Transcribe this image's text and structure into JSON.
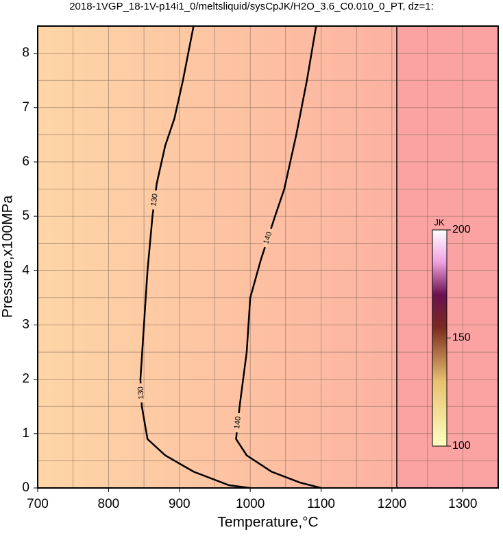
{
  "chart_data": {
    "type": "contour",
    "title": "2018-1VGP_18-1V-p14i1_0/meltsliquid/sysCpJK/H2O_3.6_C0.010_0_PT, dz=1:",
    "x_label": "Temperature,°C",
    "y_label": "Pressure,x100MPa",
    "xlim": [
      700,
      1350
    ],
    "ylim": [
      0,
      8.5
    ],
    "xticks": [
      700,
      800,
      900,
      1000,
      1100,
      1200,
      1300
    ],
    "yticks": [
      0,
      1,
      2,
      3,
      4,
      5,
      6,
      7,
      8
    ],
    "xgrid": [
      750,
      800,
      850,
      900,
      950,
      1000,
      1050,
      1100,
      1150,
      1200,
      1250,
      1300
    ],
    "ygrid": [
      0.5,
      1,
      1.5,
      2,
      2.5,
      3,
      3.5,
      4,
      4.5,
      5,
      5.5,
      6,
      6.5,
      7,
      7.5,
      8
    ],
    "contours": [
      {
        "level": 130,
        "x": [
          920,
          905,
          893,
          880,
          868,
          862,
          855,
          850,
          845,
          847,
          855,
          880,
          920,
          970,
          1000
        ],
        "y": [
          8.5,
          7.5,
          6.8,
          6.3,
          5.6,
          5,
          4,
          3,
          2,
          1.5,
          0.9,
          0.6,
          0.3,
          0.05,
          0
        ]
      },
      {
        "level": 140,
        "x": [
          1093,
          1080,
          1065,
          1048,
          1035,
          1015,
          1000,
          995,
          985,
          980,
          995,
          1030,
          1070,
          1100
        ],
        "y": [
          8.5,
          7.5,
          6.5,
          5.5,
          5,
          4.2,
          3.5,
          2.5,
          1.5,
          0.9,
          0.6,
          0.3,
          0.1,
          0
        ]
      }
    ],
    "colorbar": {
      "label": "JK",
      "lim": [
        100,
        200
      ],
      "ticks": [
        100,
        150,
        200
      ]
    }
  }
}
